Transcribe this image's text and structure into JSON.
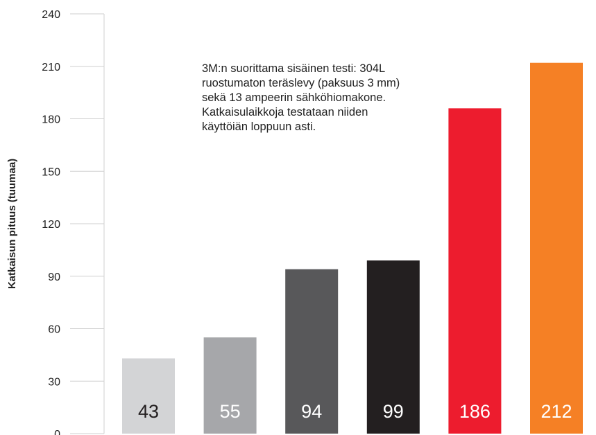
{
  "chart_data": {
    "type": "bar",
    "title": "",
    "xlabel": "",
    "ylabel": "Katkaisun pituus (tuumaa)",
    "ylim": [
      0,
      240
    ],
    "yticks": [
      0,
      30,
      60,
      90,
      120,
      150,
      180,
      210,
      240
    ],
    "grid": false,
    "legend": "none",
    "values": [
      43,
      55,
      94,
      99,
      186,
      212
    ],
    "value_labels": [
      "43",
      "55",
      "94",
      "99",
      "186",
      "212"
    ],
    "bar_colors": [
      "#d3d4d6",
      "#a6a7aa",
      "#58585a",
      "#231f20",
      "#ed1c2e",
      "#f58025"
    ],
    "label_colors": [
      "#231f20",
      "#ffffff",
      "#ffffff",
      "#ffffff",
      "#ffffff",
      "#ffffff"
    ],
    "annotation_lines": [
      "3M:n suorittama sisäinen testi: 304L",
      "ruostumaton teräslevy (paksuus 3 mm)",
      "sekä 13 ampeerin sähköhiomakone.",
      "Katkaisulaikkoja testataan niiden",
      "käyttöiän loppuun asti."
    ]
  }
}
